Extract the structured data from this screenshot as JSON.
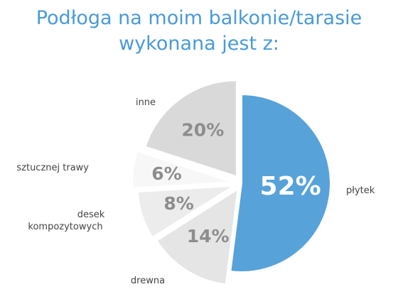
{
  "title_line1": "Podłoga na moim balkonie/tarasie",
  "title_line2": "wykonana jest z:",
  "colors": {
    "title": "#4a9ad6",
    "plytek": "#57a2d9",
    "inne": "#d9d9d9",
    "sztucznej_trawy": "#f7f7f7",
    "desek_kompozytowych": "#ececec",
    "drewna": "#e5e5e5",
    "label_text": "#444444",
    "pct_gray": "#8d8d8d"
  },
  "chart_data": {
    "type": "pie",
    "title": "Podłoga na moim balkonie/tarasie wykonana jest z:",
    "slices": [
      {
        "label": "płytek",
        "value": 52,
        "value_label": "52%"
      },
      {
        "label": "drewna",
        "value": 14,
        "value_label": "14%"
      },
      {
        "label": "desek kompozytowych",
        "value": 8,
        "value_label": "8%"
      },
      {
        "label": "sztucznej trawy",
        "value": 6,
        "value_label": "6%"
      },
      {
        "label": "inne",
        "value": 20,
        "value_label": "20%"
      }
    ]
  }
}
